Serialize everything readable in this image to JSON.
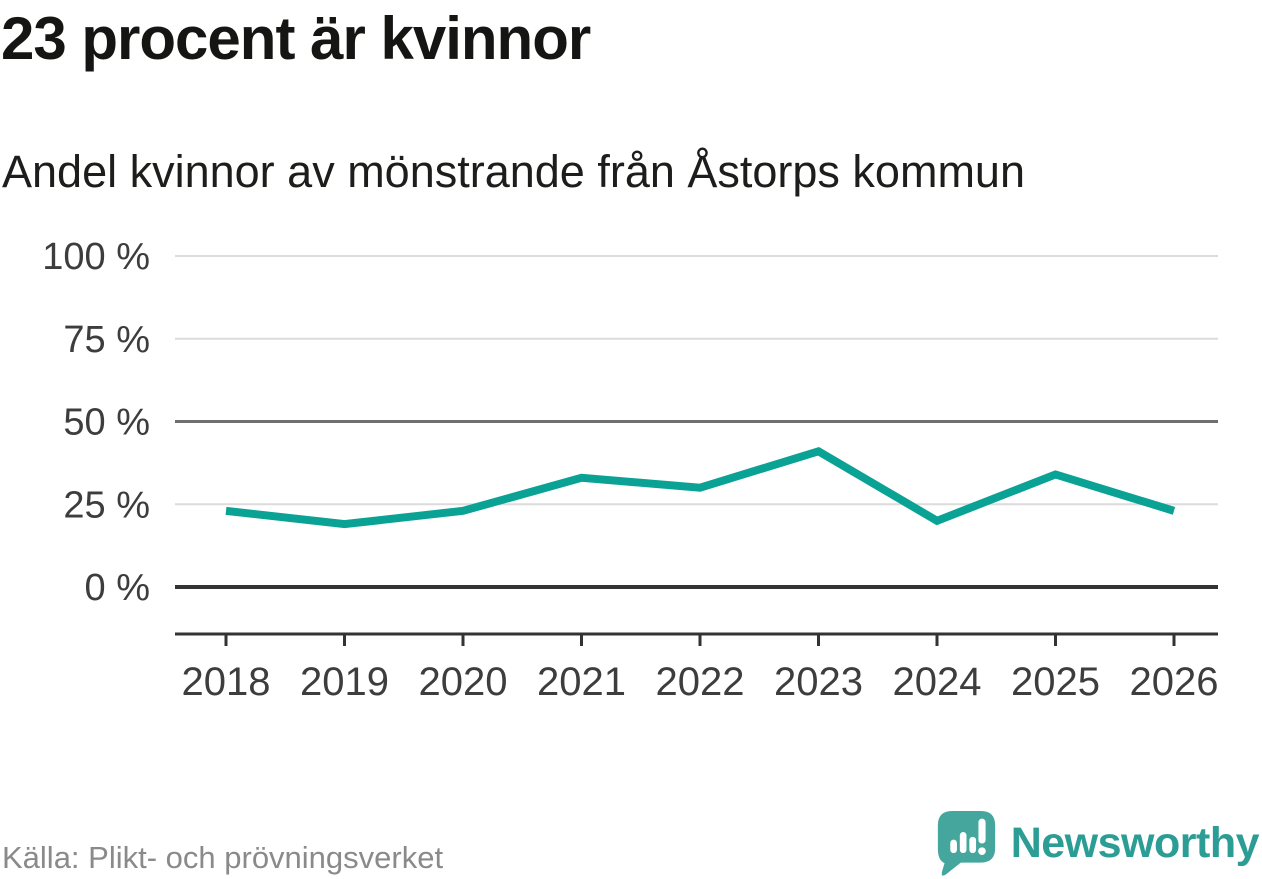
{
  "header": {
    "title": "23 procent är kvinnor",
    "subtitle": "Andel kvinnor av mönstrande från Åstorps kommun"
  },
  "footer": {
    "source": "Källa: Plikt- och prövningsverket",
    "brand": "Newsworthy"
  },
  "colors": {
    "line": "#0aa294",
    "grid_light": "#dcdcdc",
    "grid_medium": "#6f6f6f",
    "axis": "#333333",
    "tick_label": "#3d3d3d",
    "title_text": "#151513",
    "source_text": "#8a8a8a",
    "brand_text": "#2c9d95",
    "brand_icon": "#45a69e"
  },
  "chart_data": {
    "type": "line",
    "title": "23 procent är kvinnor",
    "subtitle": "Andel kvinnor av mönstrande från Åstorps kommun",
    "x": [
      "2018",
      "2019",
      "2020",
      "2021",
      "2022",
      "2023",
      "2024",
      "2025",
      "2026"
    ],
    "series": [
      {
        "name": "Andel kvinnor av mönstrande",
        "values": [
          23,
          19,
          23,
          33,
          30,
          41,
          20,
          34,
          23
        ]
      }
    ],
    "unit": "%",
    "xlabel": "",
    "ylabel": "",
    "ylim": [
      0,
      100
    ],
    "grid": true,
    "legend": "none",
    "yticks": [
      {
        "value": 100,
        "label": "100 %",
        "style": "light"
      },
      {
        "value": 75,
        "label": "75 %",
        "style": "light"
      },
      {
        "value": 50,
        "label": "50 %",
        "style": "medium"
      },
      {
        "value": 25,
        "label": "25 %",
        "style": "light"
      },
      {
        "value": 0,
        "label": "0 %",
        "style": "strong"
      }
    ],
    "source": "Källa: Plikt- och prövningsverket"
  }
}
